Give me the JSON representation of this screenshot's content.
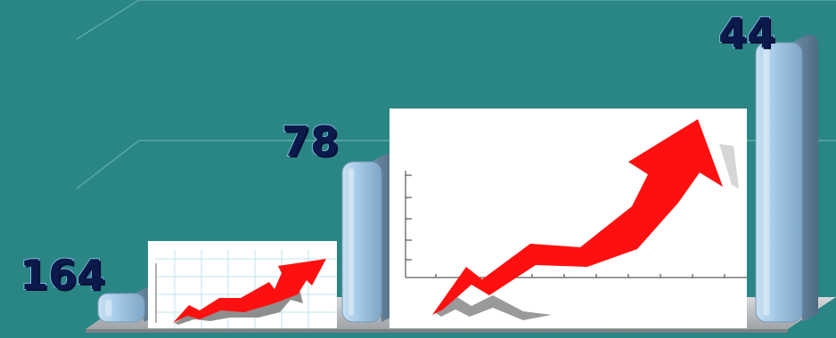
{
  "chart_data": {
    "type": "bar",
    "style": "3d-bars",
    "values": [
      164,
      78,
      44
    ],
    "value_labels": [
      "164",
      "78",
      "44"
    ],
    "title": "",
    "xlabel": "",
    "ylabel": "",
    "grid": true
  },
  "colors": {
    "background": "#2a8585",
    "bar_face": "#9cc3e4",
    "bar_side": "#5f7f98",
    "floor": "#b9bcbf",
    "grid": "#5aa8a4",
    "label_text": "#0b1a4a",
    "arrow": "#ff1010",
    "arrow_shadow": "#9a9a9a",
    "clipart_bg": "#ffffff"
  },
  "decorations": {
    "small_clipart": {
      "icon": "rising-arrow-graph-icon"
    },
    "large_clipart": {
      "icon": "rising-arrow-graph-icon"
    }
  }
}
